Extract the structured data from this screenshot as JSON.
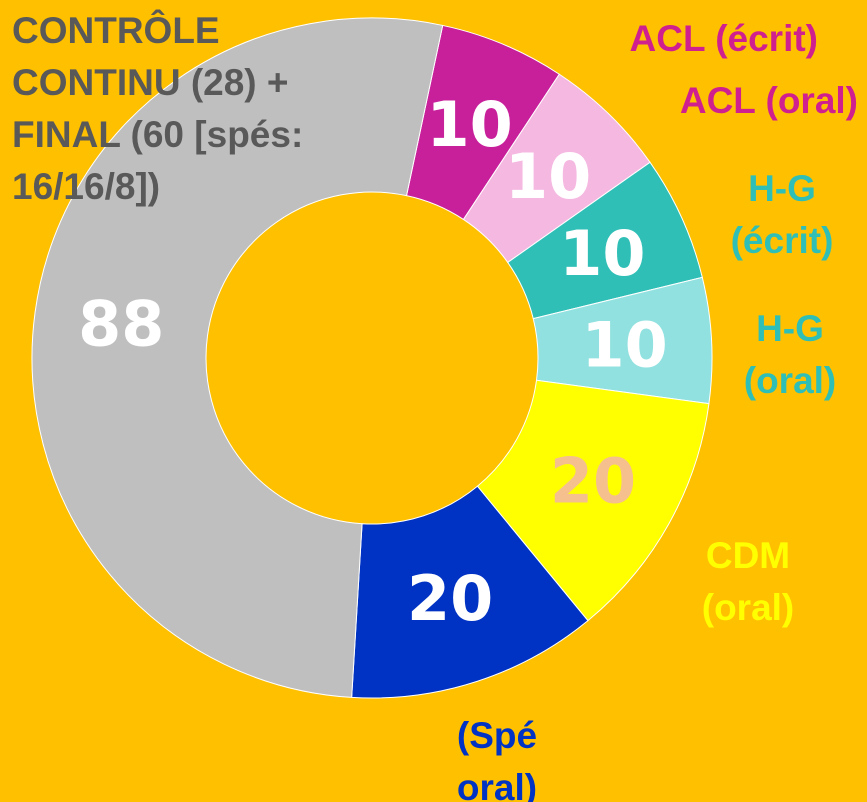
{
  "chart_data": {
    "type": "donut",
    "labels": [
      "ACL (écrit)",
      "ACL (oral)",
      "H-G (écrit)",
      "H-G (oral)",
      "CDM (oral)",
      "(Spé oral)",
      "CONTRÔLE CONTINU (28) + FINAL (60 [spés: 16/16/8])"
    ],
    "values": [
      10,
      10,
      10,
      10,
      20,
      20,
      88
    ],
    "colors": [
      "#c8209b",
      "#f5b8e1",
      "#2fbfb6",
      "#90e1df",
      "#ffff00",
      "#0033c3",
      "#bfbfbf"
    ],
    "label_colors": [
      "#d0208f",
      "#d0208f",
      "#2fbfb6",
      "#2fbfb6",
      "#ffff00",
      "#0033c3",
      "#595959"
    ],
    "value_label_colors": [
      "#ffffff",
      "#ffffff",
      "#ffffff",
      "#ffffff",
      "#f5c08e",
      "#ffffff",
      "#ffffff"
    ]
  }
}
